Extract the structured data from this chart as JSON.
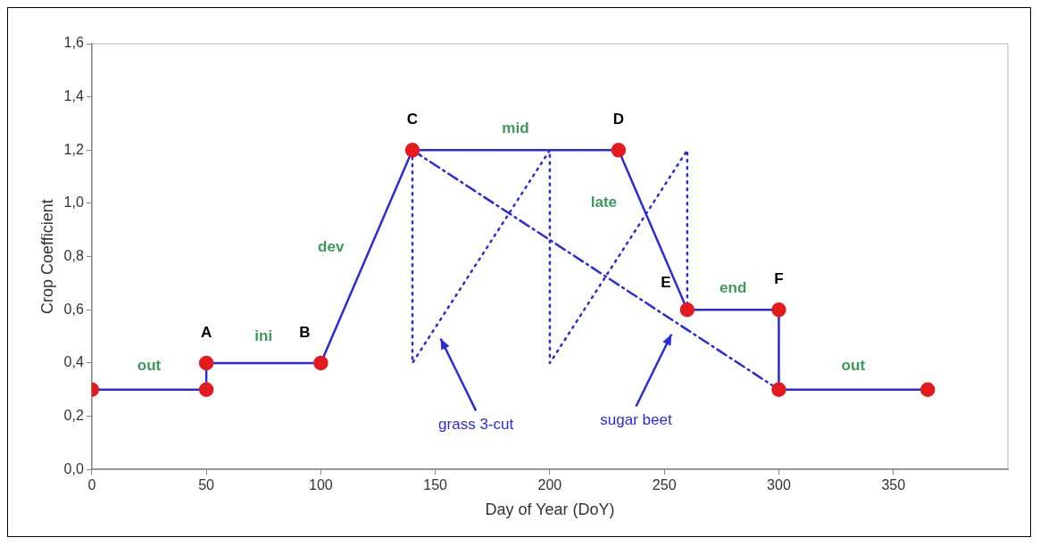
{
  "chart_data": {
    "type": "line",
    "xlabel": "Day of Year (DoY)",
    "ylabel": "Crop Coefficient",
    "xlim": [
      0,
      400
    ],
    "xticks": [
      0,
      50,
      100,
      150,
      200,
      250,
      300,
      350
    ],
    "ylim": [
      0,
      1.6
    ],
    "yticks": [
      {
        "value": 0,
        "label": "0,0"
      },
      {
        "value": 0.2,
        "label": "0,2"
      },
      {
        "value": 0.4,
        "label": "0,4"
      },
      {
        "value": 0.6,
        "label": "0,6"
      },
      {
        "value": 0.8,
        "label": "0,8"
      },
      {
        "value": 1,
        "label": "1,0"
      },
      {
        "value": 1.2,
        "label": "1,2"
      },
      {
        "value": 1.4,
        "label": "1,4"
      },
      {
        "value": 1.6,
        "label": "1,6"
      }
    ],
    "grid": false,
    "legend": false,
    "series": [
      {
        "color": "#2a2ae0",
        "colors": [
          "#e41a1c",
          "#e41a1c",
          "#e41a1c",
          "#e41a1c",
          "#e41a1c",
          "#e41a1c",
          "#e41a1c",
          "#e41a1c",
          "#e41a1c",
          "#e41a1c"
        ],
        "marker": "circle",
        "line_style": "solid",
        "x": [
          0,
          50,
          50,
          100,
          140,
          230,
          260,
          300,
          300,
          365
        ],
        "values": [
          0.3,
          0.3,
          0.4,
          0.4,
          1.2,
          1.2,
          0.6,
          0.6,
          0.3,
          0.3
        ]
      },
      {
        "name": "grass 3-cut",
        "color": "#2a2ae0",
        "marker": "none",
        "line_style": "dotted",
        "x": [
          140,
          140,
          200,
          200,
          260,
          260
        ],
        "values": [
          1.2,
          0.4,
          1.2,
          0.4,
          1.2,
          0.6
        ]
      },
      {
        "name": "sugar beet",
        "color": "#2a2ae0",
        "marker": "none",
        "line_style": "dashed",
        "x": [
          140,
          300
        ],
        "values": [
          1.2,
          0.3
        ]
      }
    ],
    "annotations": [
      {
        "text": "out",
        "x": 25,
        "y": 0.3
      },
      {
        "text": "A",
        "x": 50,
        "y": 0.4
      },
      {
        "text": "ini",
        "x": 75,
        "y": 0.4
      },
      {
        "text": "B",
        "x": 100,
        "y": 0.4
      },
      {
        "text": "dev",
        "x": 120,
        "y": 0.8
      },
      {
        "text": "C",
        "x": 140,
        "y": 1.2
      },
      {
        "text": "mid",
        "x": 185,
        "y": 1.2
      },
      {
        "text": "D",
        "x": 230,
        "y": 1.2
      },
      {
        "text": "late",
        "x": 245,
        "y": 0.9
      },
      {
        "text": "E",
        "x": 260,
        "y": 0.6
      },
      {
        "text": "end",
        "x": 280,
        "y": 0.6
      },
      {
        "text": "F",
        "x": 300,
        "y": 0.6
      },
      {
        "text": "out",
        "x": 332.5,
        "y": 0.3
      }
    ]
  }
}
